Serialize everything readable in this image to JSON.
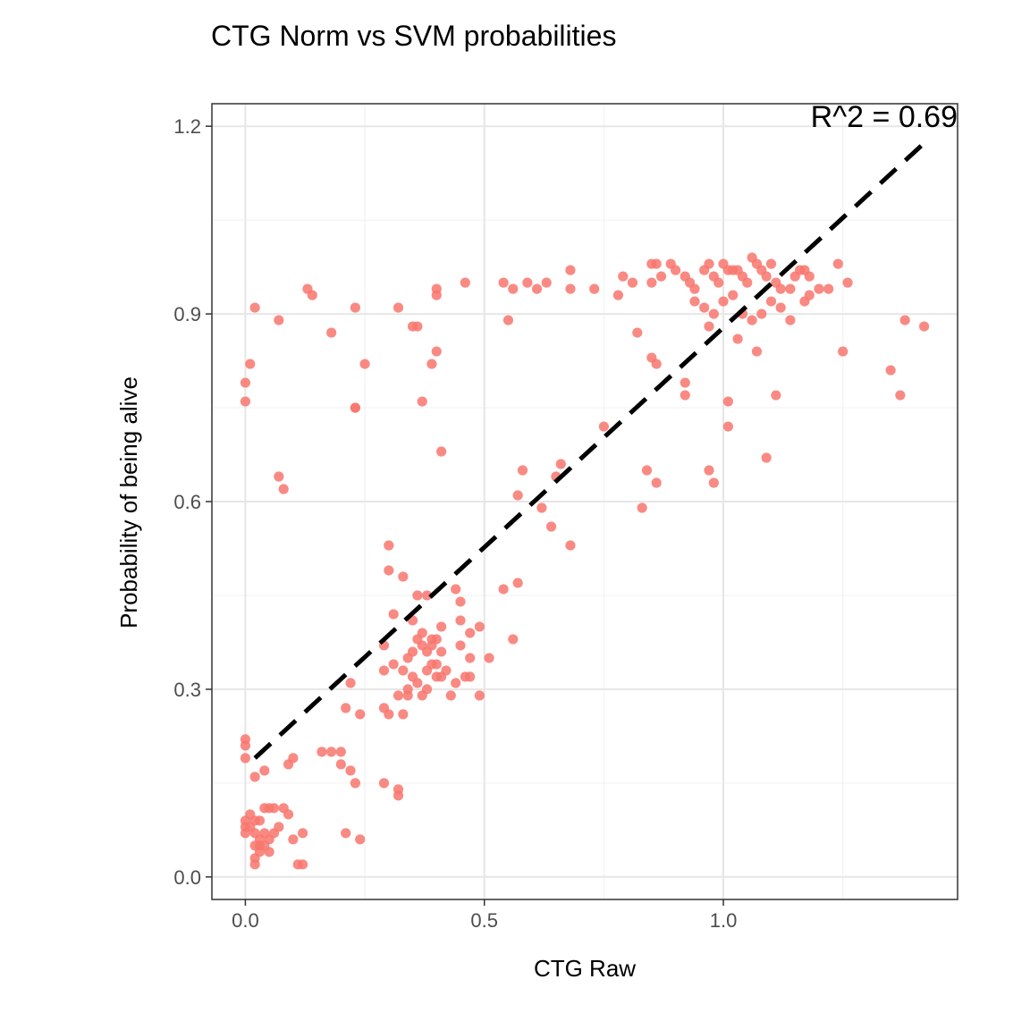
{
  "chart_data": {
    "type": "scatter",
    "title": "CTG Norm vs SVM probabilities",
    "xlabel": "CTG Raw",
    "ylabel": "Probability of being alive",
    "xlim": [
      -0.07,
      1.49
    ],
    "ylim": [
      -0.036,
      1.236
    ],
    "x_ticks": [
      0.0,
      0.5,
      1.0
    ],
    "x_tick_labels": [
      "0.0",
      "0.5",
      "1.0"
    ],
    "y_ticks": [
      0.0,
      0.3,
      0.6,
      0.9,
      1.2
    ],
    "y_tick_labels": [
      "0.0",
      "0.3",
      "0.6",
      "0.9",
      "1.2"
    ],
    "grid": true,
    "point_color": "#F8766D",
    "fit_line": {
      "style": "dashed",
      "color": "#000000",
      "x": [
        0.02,
        1.43
      ],
      "y": [
        0.19,
        1.18
      ]
    },
    "annotation": "R^2 = 0.69",
    "points": [
      [
        0.02,
        0.91
      ],
      [
        0.01,
        0.82
      ],
      [
        0.0,
        0.79
      ],
      [
        0.0,
        0.76
      ],
      [
        0.07,
        0.89
      ],
      [
        0.07,
        0.64
      ],
      [
        0.08,
        0.62
      ],
      [
        0.13,
        0.94
      ],
      [
        0.14,
        0.93
      ],
      [
        0.18,
        0.87
      ],
      [
        0.23,
        0.91
      ],
      [
        0.25,
        0.82
      ],
      [
        0.23,
        0.75
      ],
      [
        0.23,
        0.75
      ],
      [
        0.32,
        0.91
      ],
      [
        0.35,
        0.88
      ],
      [
        0.36,
        0.88
      ],
      [
        0.4,
        0.94
      ],
      [
        0.4,
        0.93
      ],
      [
        0.4,
        0.84
      ],
      [
        0.39,
        0.82
      ],
      [
        0.37,
        0.76
      ],
      [
        0.41,
        0.68
      ],
      [
        0.46,
        0.95
      ],
      [
        0.54,
        0.95
      ],
      [
        0.55,
        0.89
      ],
      [
        0.56,
        0.94
      ],
      [
        0.59,
        0.95
      ],
      [
        0.61,
        0.94
      ],
      [
        0.63,
        0.95
      ],
      [
        0.68,
        0.97
      ],
      [
        0.68,
        0.94
      ],
      [
        0.73,
        0.94
      ],
      [
        0.78,
        0.93
      ],
      [
        0.79,
        0.96
      ],
      [
        0.81,
        0.95
      ],
      [
        0.85,
        0.98
      ],
      [
        0.86,
        0.98
      ],
      [
        0.85,
        0.95
      ],
      [
        0.87,
        0.96
      ],
      [
        0.89,
        0.98
      ],
      [
        0.9,
        0.97
      ],
      [
        0.92,
        0.96
      ],
      [
        0.93,
        0.95
      ],
      [
        0.94,
        0.94
      ],
      [
        0.96,
        0.97
      ],
      [
        0.97,
        0.98
      ],
      [
        0.98,
        0.96
      ],
      [
        0.99,
        0.95
      ],
      [
        1.0,
        0.98
      ],
      [
        1.01,
        0.97
      ],
      [
        1.02,
        0.97
      ],
      [
        1.03,
        0.97
      ],
      [
        1.04,
        0.96
      ],
      [
        1.05,
        0.95
      ],
      [
        1.06,
        0.99
      ],
      [
        1.07,
        0.98
      ],
      [
        1.08,
        0.97
      ],
      [
        1.09,
        0.96
      ],
      [
        1.1,
        0.98
      ],
      [
        1.11,
        0.95
      ],
      [
        1.12,
        0.94
      ],
      [
        1.14,
        0.94
      ],
      [
        1.15,
        0.96
      ],
      [
        1.16,
        0.97
      ],
      [
        1.17,
        0.97
      ],
      [
        1.18,
        0.96
      ],
      [
        1.2,
        0.94
      ],
      [
        1.22,
        0.94
      ],
      [
        1.24,
        0.98
      ],
      [
        1.26,
        0.95
      ],
      [
        0.94,
        0.92
      ],
      [
        0.96,
        0.91
      ],
      [
        0.98,
        0.9
      ],
      [
        1.0,
        0.92
      ],
      [
        1.02,
        0.93
      ],
      [
        1.04,
        0.9
      ],
      [
        1.06,
        0.89
      ],
      [
        1.08,
        0.9
      ],
      [
        1.1,
        0.92
      ],
      [
        1.12,
        0.91
      ],
      [
        1.14,
        0.89
      ],
      [
        1.17,
        0.92
      ],
      [
        1.18,
        0.93
      ],
      [
        0.97,
        0.88
      ],
      [
        1.03,
        0.86
      ],
      [
        1.07,
        0.84
      ],
      [
        0.82,
        0.87
      ],
      [
        0.85,
        0.83
      ],
      [
        0.86,
        0.82
      ],
      [
        0.92,
        0.79
      ],
      [
        0.92,
        0.77
      ],
      [
        1.01,
        0.76
      ],
      [
        1.01,
        0.72
      ],
      [
        1.11,
        0.77
      ],
      [
        1.09,
        0.67
      ],
      [
        1.25,
        0.84
      ],
      [
        1.35,
        0.81
      ],
      [
        1.37,
        0.77
      ],
      [
        1.38,
        0.89
      ],
      [
        1.42,
        0.88
      ],
      [
        0.75,
        0.72
      ],
      [
        0.84,
        0.65
      ],
      [
        0.83,
        0.59
      ],
      [
        0.86,
        0.63
      ],
      [
        0.97,
        0.65
      ],
      [
        0.98,
        0.63
      ],
      [
        0.58,
        0.65
      ],
      [
        0.57,
        0.61
      ],
      [
        0.62,
        0.59
      ],
      [
        0.65,
        0.64
      ],
      [
        0.66,
        0.66
      ],
      [
        0.64,
        0.56
      ],
      [
        0.68,
        0.53
      ],
      [
        0.57,
        0.47
      ],
      [
        0.54,
        0.46
      ],
      [
        0.56,
        0.38
      ],
      [
        0.3,
        0.53
      ],
      [
        0.3,
        0.49
      ],
      [
        0.33,
        0.48
      ],
      [
        0.36,
        0.45
      ],
      [
        0.38,
        0.45
      ],
      [
        0.31,
        0.42
      ],
      [
        0.35,
        0.41
      ],
      [
        0.37,
        0.39
      ],
      [
        0.39,
        0.38
      ],
      [
        0.41,
        0.4
      ],
      [
        0.44,
        0.46
      ],
      [
        0.45,
        0.44
      ],
      [
        0.45,
        0.41
      ],
      [
        0.47,
        0.39
      ],
      [
        0.49,
        0.4
      ],
      [
        0.45,
        0.37
      ],
      [
        0.47,
        0.35
      ],
      [
        0.47,
        0.32
      ],
      [
        0.46,
        0.32
      ],
      [
        0.44,
        0.31
      ],
      [
        0.43,
        0.29
      ],
      [
        0.49,
        0.29
      ],
      [
        0.51,
        0.35
      ],
      [
        0.29,
        0.37
      ],
      [
        0.29,
        0.33
      ],
      [
        0.31,
        0.34
      ],
      [
        0.32,
        0.29
      ],
      [
        0.34,
        0.29
      ],
      [
        0.34,
        0.3
      ],
      [
        0.35,
        0.32
      ],
      [
        0.36,
        0.31
      ],
      [
        0.37,
        0.29
      ],
      [
        0.38,
        0.3
      ],
      [
        0.38,
        0.33
      ],
      [
        0.39,
        0.34
      ],
      [
        0.4,
        0.32
      ],
      [
        0.4,
        0.34
      ],
      [
        0.41,
        0.32
      ],
      [
        0.42,
        0.33
      ],
      [
        0.34,
        0.35
      ],
      [
        0.35,
        0.36
      ],
      [
        0.36,
        0.38
      ],
      [
        0.37,
        0.37
      ],
      [
        0.38,
        0.36
      ],
      [
        0.39,
        0.37
      ],
      [
        0.4,
        0.38
      ],
      [
        0.41,
        0.36
      ],
      [
        0.33,
        0.33
      ],
      [
        0.29,
        0.27
      ],
      [
        0.3,
        0.26
      ],
      [
        0.33,
        0.26
      ],
      [
        0.21,
        0.27
      ],
      [
        0.22,
        0.31
      ],
      [
        0.24,
        0.26
      ],
      [
        0.0,
        0.22
      ],
      [
        0.0,
        0.21
      ],
      [
        0.0,
        0.19
      ],
      [
        0.1,
        0.19
      ],
      [
        0.09,
        0.18
      ],
      [
        0.16,
        0.2
      ],
      [
        0.18,
        0.2
      ],
      [
        0.2,
        0.2
      ],
      [
        0.2,
        0.18
      ],
      [
        0.22,
        0.17
      ],
      [
        0.23,
        0.15
      ],
      [
        0.04,
        0.17
      ],
      [
        0.02,
        0.16
      ],
      [
        0.29,
        0.15
      ],
      [
        0.32,
        0.14
      ],
      [
        0.32,
        0.13
      ],
      [
        0.0,
        0.09
      ],
      [
        0.0,
        0.08
      ],
      [
        0.0,
        0.07
      ],
      [
        0.01,
        0.1
      ],
      [
        0.01,
        0.08
      ],
      [
        0.02,
        0.09
      ],
      [
        0.02,
        0.07
      ],
      [
        0.02,
        0.05
      ],
      [
        0.03,
        0.06
      ],
      [
        0.03,
        0.04
      ],
      [
        0.02,
        0.03
      ],
      [
        0.02,
        0.02
      ],
      [
        0.03,
        0.09
      ],
      [
        0.04,
        0.11
      ],
      [
        0.05,
        0.11
      ],
      [
        0.06,
        0.11
      ],
      [
        0.04,
        0.07
      ],
      [
        0.05,
        0.06
      ],
      [
        0.06,
        0.07
      ],
      [
        0.05,
        0.04
      ],
      [
        0.08,
        0.11
      ],
      [
        0.09,
        0.1
      ],
      [
        0.07,
        0.08
      ],
      [
        0.12,
        0.07
      ],
      [
        0.11,
        0.02
      ],
      [
        0.12,
        0.02
      ],
      [
        0.21,
        0.07
      ],
      [
        0.24,
        0.06
      ],
      [
        0.1,
        0.06
      ],
      [
        0.03,
        0.05
      ],
      [
        0.04,
        0.05
      ]
    ]
  }
}
